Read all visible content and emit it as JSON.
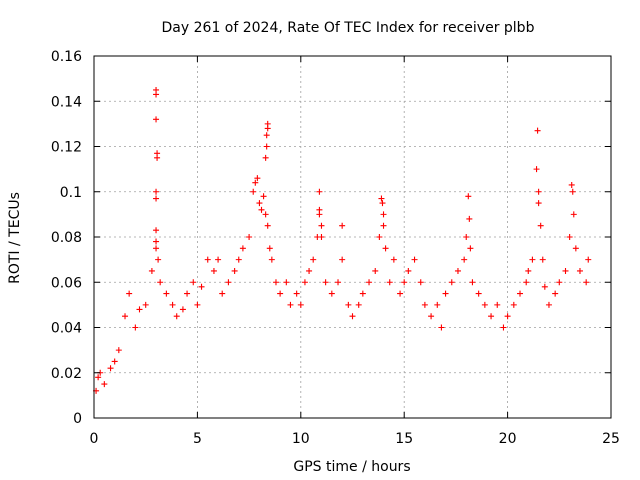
{
  "chart_data": {
    "type": "scatter",
    "title": "Day 261 of 2024, Rate Of TEC Index for receiver plbb",
    "xlabel": "GPS time / hours",
    "ylabel": "ROTI / TECUs",
    "xlim": [
      0,
      25
    ],
    "ylim": [
      0,
      0.16
    ],
    "xticks": [
      "0",
      "5",
      "10",
      "15",
      "20",
      "25"
    ],
    "yticks": [
      "0",
      "0.02",
      "0.04",
      "0.06",
      "0.08",
      "0.1",
      "0.12",
      "0.14",
      "0.16"
    ],
    "grid": true,
    "marker": "+",
    "color": "#ff0000",
    "series": [
      {
        "points": [
          [
            0.1,
            0.012
          ],
          [
            0.2,
            0.018
          ],
          [
            0.3,
            0.02
          ],
          [
            0.5,
            0.015
          ],
          [
            0.8,
            0.022
          ],
          [
            1.0,
            0.025
          ],
          [
            1.2,
            0.03
          ],
          [
            1.5,
            0.045
          ],
          [
            1.7,
            0.055
          ],
          [
            2.0,
            0.04
          ],
          [
            2.2,
            0.048
          ],
          [
            2.5,
            0.05
          ],
          [
            2.8,
            0.065
          ],
          [
            3.0,
            0.145
          ],
          [
            3.0,
            0.143
          ],
          [
            3.0,
            0.132
          ],
          [
            3.05,
            0.117
          ],
          [
            3.05,
            0.115
          ],
          [
            3.0,
            0.1
          ],
          [
            3.0,
            0.097
          ],
          [
            3.0,
            0.083
          ],
          [
            3.0,
            0.078
          ],
          [
            3.0,
            0.075
          ],
          [
            3.1,
            0.07
          ],
          [
            3.2,
            0.06
          ],
          [
            3.5,
            0.055
          ],
          [
            3.8,
            0.05
          ],
          [
            4.0,
            0.045
          ],
          [
            4.3,
            0.048
          ],
          [
            4.5,
            0.055
          ],
          [
            4.8,
            0.06
          ],
          [
            5.0,
            0.05
          ],
          [
            5.2,
            0.058
          ],
          [
            5.5,
            0.07
          ],
          [
            5.8,
            0.065
          ],
          [
            6.0,
            0.07
          ],
          [
            6.2,
            0.055
          ],
          [
            6.5,
            0.06
          ],
          [
            6.8,
            0.065
          ],
          [
            7.0,
            0.07
          ],
          [
            7.2,
            0.075
          ],
          [
            7.5,
            0.08
          ],
          [
            7.7,
            0.1
          ],
          [
            7.8,
            0.104
          ],
          [
            7.9,
            0.106
          ],
          [
            8.0,
            0.095
          ],
          [
            8.1,
            0.092
          ],
          [
            8.2,
            0.098
          ],
          [
            8.3,
            0.09
          ],
          [
            8.35,
            0.125
          ],
          [
            8.4,
            0.13
          ],
          [
            8.4,
            0.128
          ],
          [
            8.35,
            0.12
          ],
          [
            8.3,
            0.115
          ],
          [
            8.4,
            0.085
          ],
          [
            8.5,
            0.075
          ],
          [
            8.6,
            0.07
          ],
          [
            8.8,
            0.06
          ],
          [
            9.0,
            0.055
          ],
          [
            9.3,
            0.06
          ],
          [
            9.5,
            0.05
          ],
          [
            9.8,
            0.055
          ],
          [
            10.0,
            0.05
          ],
          [
            10.2,
            0.06
          ],
          [
            10.4,
            0.065
          ],
          [
            10.6,
            0.07
          ],
          [
            10.8,
            0.08
          ],
          [
            10.9,
            0.1
          ],
          [
            10.9,
            0.092
          ],
          [
            10.9,
            0.09
          ],
          [
            11.0,
            0.085
          ],
          [
            11.0,
            0.08
          ],
          [
            11.2,
            0.06
          ],
          [
            11.5,
            0.055
          ],
          [
            11.8,
            0.06
          ],
          [
            12.0,
            0.085
          ],
          [
            12.0,
            0.07
          ],
          [
            12.3,
            0.05
          ],
          [
            12.5,
            0.045
          ],
          [
            12.8,
            0.05
          ],
          [
            13.0,
            0.055
          ],
          [
            13.3,
            0.06
          ],
          [
            13.6,
            0.065
          ],
          [
            13.8,
            0.08
          ],
          [
            13.9,
            0.097
          ],
          [
            13.95,
            0.095
          ],
          [
            14.0,
            0.09
          ],
          [
            14.0,
            0.085
          ],
          [
            14.1,
            0.075
          ],
          [
            14.3,
            0.06
          ],
          [
            14.5,
            0.07
          ],
          [
            14.8,
            0.055
          ],
          [
            15.0,
            0.06
          ],
          [
            15.2,
            0.065
          ],
          [
            15.5,
            0.07
          ],
          [
            15.8,
            0.06
          ],
          [
            16.0,
            0.05
          ],
          [
            16.3,
            0.045
          ],
          [
            16.6,
            0.05
          ],
          [
            16.8,
            0.04
          ],
          [
            17.0,
            0.055
          ],
          [
            17.3,
            0.06
          ],
          [
            17.6,
            0.065
          ],
          [
            17.9,
            0.07
          ],
          [
            18.0,
            0.08
          ],
          [
            18.1,
            0.098
          ],
          [
            18.15,
            0.088
          ],
          [
            18.2,
            0.075
          ],
          [
            18.3,
            0.06
          ],
          [
            18.6,
            0.055
          ],
          [
            18.9,
            0.05
          ],
          [
            19.2,
            0.045
          ],
          [
            19.5,
            0.05
          ],
          [
            19.8,
            0.04
          ],
          [
            20.0,
            0.045
          ],
          [
            20.3,
            0.05
          ],
          [
            20.6,
            0.055
          ],
          [
            20.9,
            0.06
          ],
          [
            21.0,
            0.065
          ],
          [
            21.2,
            0.07
          ],
          [
            21.4,
            0.11
          ],
          [
            21.45,
            0.127
          ],
          [
            21.5,
            0.1
          ],
          [
            21.5,
            0.095
          ],
          [
            21.6,
            0.085
          ],
          [
            21.7,
            0.07
          ],
          [
            21.8,
            0.058
          ],
          [
            22.0,
            0.05
          ],
          [
            22.3,
            0.055
          ],
          [
            22.5,
            0.06
          ],
          [
            22.8,
            0.065
          ],
          [
            23.0,
            0.08
          ],
          [
            23.1,
            0.103
          ],
          [
            23.15,
            0.1
          ],
          [
            23.2,
            0.09
          ],
          [
            23.3,
            0.075
          ],
          [
            23.5,
            0.065
          ],
          [
            23.8,
            0.06
          ],
          [
            23.9,
            0.07
          ]
        ]
      }
    ]
  }
}
